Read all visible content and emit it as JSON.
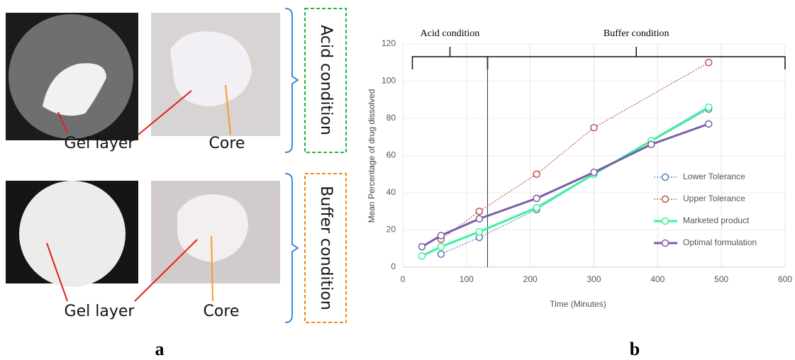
{
  "panel_a": {
    "label": "a",
    "rows": [
      {
        "condition": "Acid condition",
        "labels": [
          "Gel layer",
          "Core"
        ]
      },
      {
        "condition": "Buffer condition",
        "labels": [
          "Gel layer",
          "Core"
        ]
      }
    ]
  },
  "chart_data": {
    "type": "line",
    "panel_label": "b",
    "x_label": "Time (Minutes)",
    "y_label": "Mean Percentage of drug dissolved",
    "xlim": [
      0,
      600
    ],
    "xticks": [
      0,
      100,
      200,
      300,
      400,
      500,
      600
    ],
    "ylim": [
      0,
      120
    ],
    "yticks": [
      0,
      20,
      40,
      60,
      80,
      100,
      120
    ],
    "grid": true,
    "legend": "right",
    "annotations": [
      {
        "text": "Acid condition",
        "span": [
          15,
          133
        ]
      },
      {
        "text": "Buffer condition",
        "span": [
          133,
          600
        ]
      }
    ],
    "series": [
      {
        "name": "Lower Tolerance",
        "color": "#4a7fc1",
        "line_style": "dotted",
        "x": [
          60,
          120,
          210,
          300,
          480
        ],
        "values": [
          7,
          16,
          31,
          50,
          85
        ]
      },
      {
        "name": "Upper Tolerance",
        "color": "#c0504d",
        "line_style": "dotted",
        "x": [
          60,
          120,
          210,
          300,
          480
        ],
        "values": [
          15,
          30,
          50,
          75,
          110
        ]
      },
      {
        "name": "Marketed product",
        "color": "#3ef0a0",
        "line_style": "solid",
        "x": [
          30,
          60,
          120,
          210,
          300,
          390,
          480
        ],
        "values": [
          6,
          11,
          19,
          32,
          50,
          68,
          86
        ]
      },
      {
        "name": "Optimal formulation",
        "color": "#7b5ea7",
        "line_style": "solid",
        "x": [
          30,
          60,
          120,
          210,
          300,
          390,
          480
        ],
        "values": [
          11,
          17,
          26,
          37,
          51,
          66,
          77
        ]
      }
    ]
  }
}
